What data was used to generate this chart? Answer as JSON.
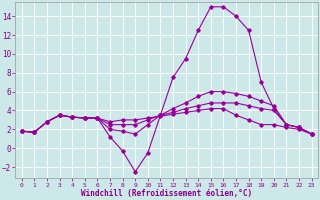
{
  "title": "",
  "xlabel": "Windchill (Refroidissement éolien,°C)",
  "bg_color": "#cce8e8",
  "grid_color": "#ffffff",
  "line_color": "#990099",
  "xlim": [
    -0.5,
    23.5
  ],
  "ylim": [
    -3.2,
    15.5
  ],
  "xticks": [
    0,
    1,
    2,
    3,
    4,
    5,
    6,
    7,
    8,
    9,
    10,
    11,
    12,
    13,
    14,
    15,
    16,
    17,
    18,
    19,
    20,
    21,
    22,
    23
  ],
  "yticks": [
    -2,
    0,
    2,
    4,
    6,
    8,
    10,
    12,
    14
  ],
  "lines": [
    {
      "x": [
        0,
        1,
        2,
        3,
        4,
        5,
        6,
        7,
        8,
        9,
        10,
        11,
        12,
        13,
        14,
        15,
        16,
        17,
        18,
        19,
        20,
        21,
        22,
        23
      ],
      "y": [
        1.8,
        1.7,
        2.8,
        3.5,
        3.3,
        3.2,
        3.2,
        1.2,
        -0.3,
        -2.5,
        -0.5,
        3.5,
        7.5,
        9.5,
        12.5,
        15.0,
        15.0,
        14.0,
        12.5,
        7.0,
        4.2,
        2.5,
        2.2,
        1.5
      ]
    },
    {
      "x": [
        0,
        1,
        2,
        3,
        4,
        5,
        6,
        7,
        8,
        9,
        10,
        11,
        12,
        13,
        14,
        15,
        16,
        17,
        18,
        19,
        20,
        21,
        22,
        23
      ],
      "y": [
        1.8,
        1.7,
        2.8,
        3.5,
        3.3,
        3.2,
        3.2,
        2.0,
        1.8,
        1.5,
        2.5,
        3.5,
        4.2,
        4.8,
        5.5,
        6.0,
        6.0,
        5.8,
        5.5,
        5.0,
        4.5,
        2.5,
        2.2,
        1.5
      ]
    },
    {
      "x": [
        0,
        1,
        2,
        3,
        4,
        5,
        6,
        7,
        8,
        9,
        10,
        11,
        12,
        13,
        14,
        15,
        16,
        17,
        18,
        19,
        20,
        21,
        22,
        23
      ],
      "y": [
        1.8,
        1.7,
        2.8,
        3.5,
        3.3,
        3.2,
        3.2,
        2.5,
        2.5,
        2.5,
        3.0,
        3.5,
        3.8,
        4.2,
        4.5,
        4.8,
        4.8,
        4.8,
        4.5,
        4.2,
        4.0,
        2.5,
        2.2,
        1.5
      ]
    },
    {
      "x": [
        0,
        1,
        2,
        3,
        4,
        5,
        6,
        7,
        8,
        9,
        10,
        11,
        12,
        13,
        14,
        15,
        16,
        17,
        18,
        19,
        20,
        21,
        22,
        23
      ],
      "y": [
        1.8,
        1.7,
        2.8,
        3.5,
        3.3,
        3.2,
        3.2,
        2.8,
        3.0,
        3.0,
        3.2,
        3.4,
        3.6,
        3.8,
        4.0,
        4.2,
        4.2,
        3.5,
        3.0,
        2.5,
        2.5,
        2.2,
        2.0,
        1.5
      ]
    }
  ]
}
